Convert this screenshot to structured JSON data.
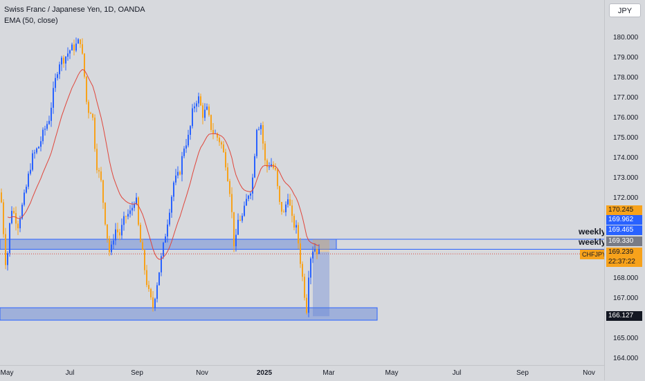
{
  "legend": {
    "title": "Swiss Franc / Japanese Yen, 1D, OANDA",
    "indicator": "EMA (50, close)"
  },
  "currency_button": "JPY",
  "zones": [
    {
      "label": "weekly"
    },
    {
      "label": "weekly"
    }
  ],
  "price_axis": {
    "ticks": [
      "180.000",
      "179.000",
      "178.000",
      "177.000",
      "176.000",
      "175.000",
      "174.000",
      "173.000",
      "172.000",
      "168.000",
      "167.000",
      "165.000",
      "164.000"
    ],
    "tags": [
      {
        "text": "170.245",
        "color": "#f7a21b",
        "textColor": "#131722",
        "price": 170.245
      },
      {
        "text": "169.962",
        "color": "#2962ff",
        "textColor": "#ffffff",
        "price": 169.962
      },
      {
        "text": "169.465",
        "color": "#2962ff",
        "textColor": "#ffffff",
        "price": 169.465
      },
      {
        "text": "169.330",
        "color": "#787b86",
        "textColor": "#ffffff",
        "price": 169.33
      },
      {
        "text": "169.239",
        "color": "#f7a21b",
        "textColor": "#131722",
        "price": 169.239
      },
      {
        "text": "22:37:22",
        "color": "#f7a21b",
        "textColor": "#131722",
        "price": 168.8
      },
      {
        "text": "166.127",
        "color": "#131722",
        "textColor": "#ffffff",
        "price": 166.127
      }
    ],
    "symbol_tag": "CHFJPY"
  },
  "time_axis": {
    "ticks": [
      {
        "label": "May",
        "bold": false
      },
      {
        "label": "Jul",
        "bold": false
      },
      {
        "label": "Sep",
        "bold": false
      },
      {
        "label": "Nov",
        "bold": false
      },
      {
        "label": "2025",
        "bold": true
      },
      {
        "label": "Mar",
        "bold": false
      },
      {
        "label": "May",
        "bold": false
      },
      {
        "label": "Jul",
        "bold": false
      },
      {
        "label": "Sep",
        "bold": false
      },
      {
        "label": "Nov",
        "bold": false
      }
    ]
  },
  "colors": {
    "up": "#2962ff",
    "down": "#f7a21b",
    "ema": "#e0453a",
    "zone_fill": "#5b7fd6",
    "zone_border": "#2962ff"
  }
}
